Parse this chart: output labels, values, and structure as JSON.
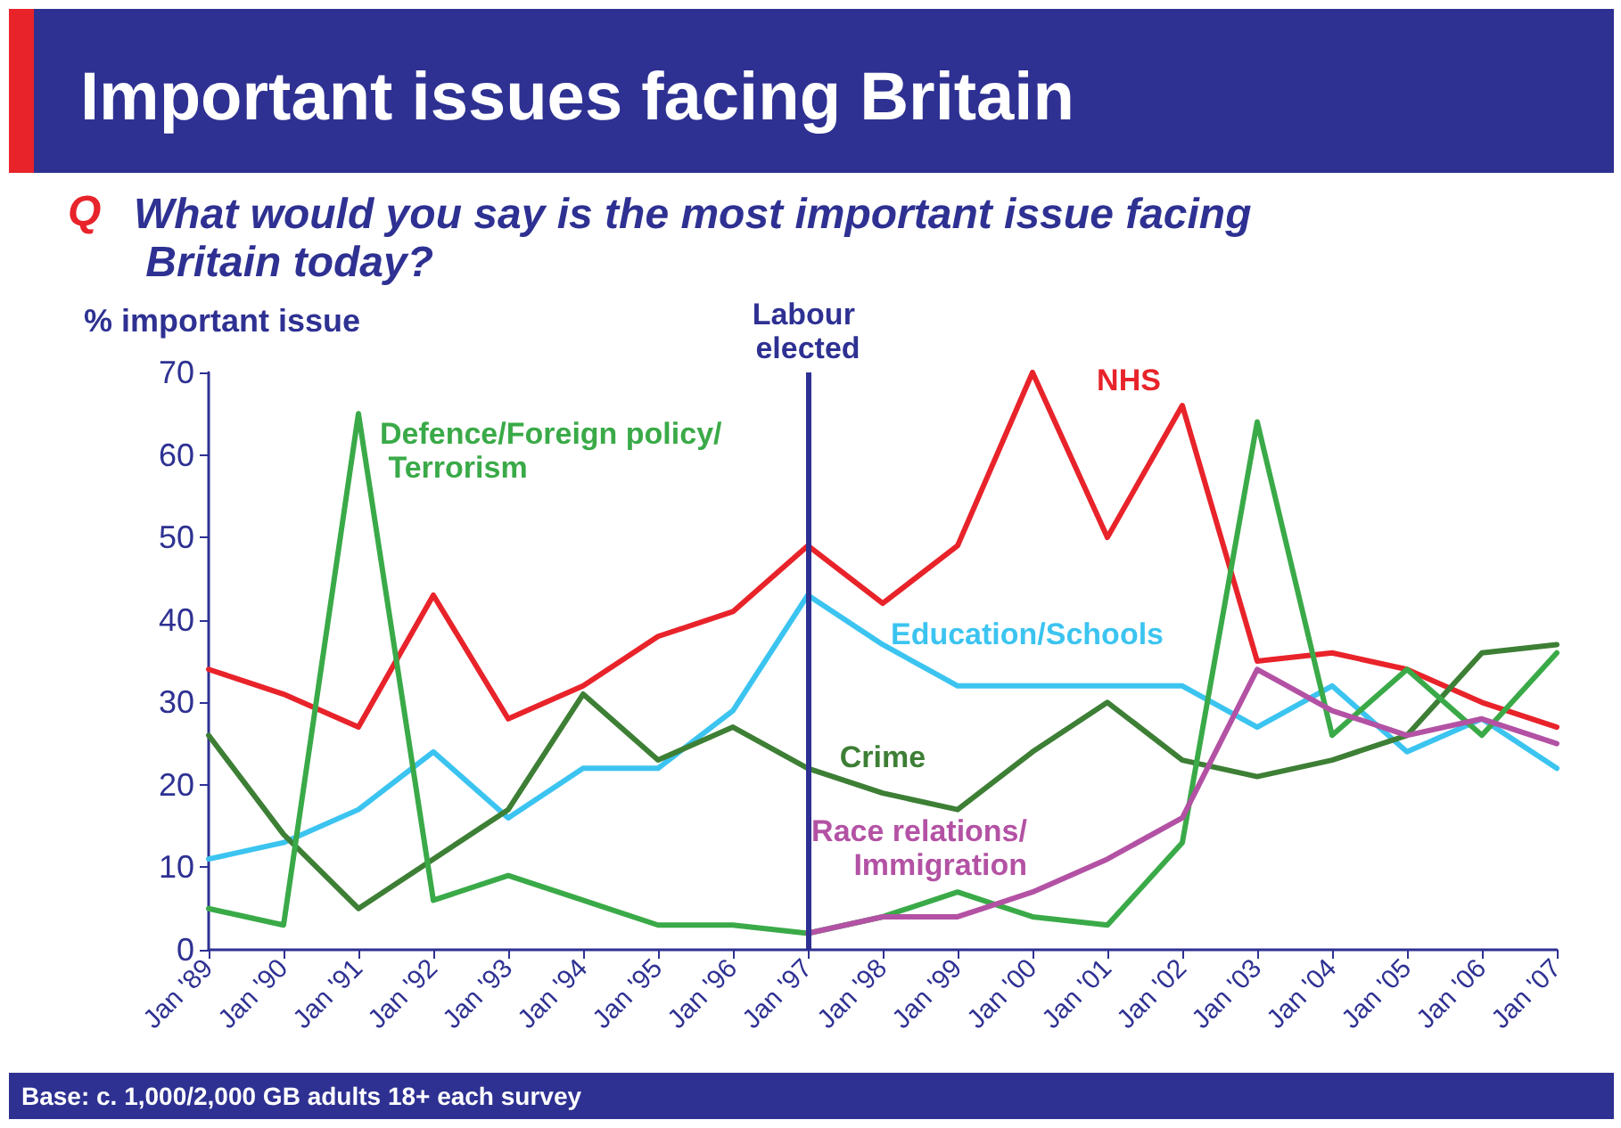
{
  "chart_data": {
    "type": "line",
    "title": "Important issues facing Britain",
    "subtitle": "What would you say is the most important issue facing Britain today?",
    "ylabel": "% important issue",
    "annotations": [
      "Q",
      "Base: c. 1,000/2,000 GB adults 18+ each survey"
    ],
    "categories": [
      "Jan '89",
      "Jan '90",
      "Jan '91",
      "Jan '92",
      "Jan '93",
      "Jan '94",
      "Jan '95",
      "Jan '96",
      "Jan '97",
      "Jan '98",
      "Jan '99",
      "Jan '00",
      "Jan '01",
      "Jan '02",
      "Jan '03",
      "Jan '04",
      "Jan '05",
      "Jan '06",
      "Jan '07"
    ],
    "ylim": [
      0,
      70
    ],
    "yticks": [
      0,
      10,
      20,
      30,
      40,
      50,
      60,
      70
    ],
    "grid": false,
    "legend": false,
    "marker": "none",
    "line_style": "solid",
    "ref_lines": [
      {
        "axis": "x",
        "value": "Jan '97",
        "label": "Labour elected",
        "color": "#2e3192"
      }
    ],
    "series": [
      {
        "name": "NHS",
        "color": "#e8232a",
        "values": [
          34,
          31,
          27,
          43,
          28,
          32,
          38,
          41,
          49,
          42,
          49,
          70,
          50,
          66,
          35,
          36,
          34,
          30,
          27
        ]
      },
      {
        "name": "Education/Schools",
        "color": "#3cc4f0",
        "values": [
          11,
          13,
          17,
          24,
          16,
          22,
          22,
          29,
          43,
          37,
          32,
          32,
          32,
          32,
          27,
          32,
          24,
          28,
          22
        ]
      },
      {
        "name": "Crime",
        "color": "#3d7f35",
        "values": [
          26,
          14,
          5,
          11,
          17,
          31,
          23,
          27,
          22,
          19,
          17,
          24,
          30,
          23,
          21,
          23,
          26,
          36,
          37
        ]
      },
      {
        "name": "Defence/Foreign policy/ Terrorism",
        "color": "#3aaa48",
        "values": [
          5,
          3,
          65,
          6,
          9,
          6,
          3,
          3,
          2,
          4,
          7,
          4,
          3,
          13,
          64,
          26,
          34,
          26,
          36
        ]
      },
      {
        "name": "Race relations/ Immigration",
        "color": "#b352a4",
        "values": [
          null,
          null,
          null,
          null,
          null,
          null,
          null,
          null,
          2,
          4,
          4,
          7,
          11,
          16,
          34,
          29,
          26,
          28,
          25
        ]
      }
    ]
  }
}
